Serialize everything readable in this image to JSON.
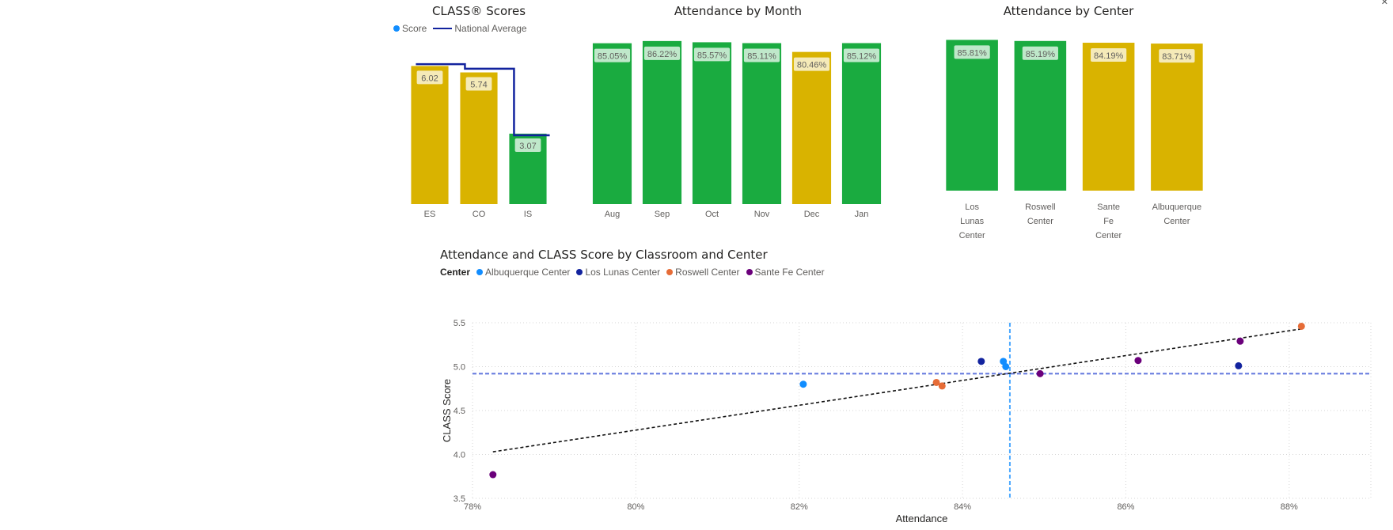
{
  "charts": {
    "class_scores": {
      "title": "CLASS® Scores",
      "legend": {
        "score": "Score",
        "national": "National Average"
      },
      "legend_colors": {
        "score": "#118dff",
        "national": "#12239e"
      }
    },
    "attendance_month": {
      "title": "Attendance by Month"
    },
    "attendance_center": {
      "title": "Attendance by Center"
    },
    "scatter": {
      "title": "Attendance and CLASS Score by Classroom and Center",
      "legend_title": "Center"
    }
  },
  "colors": {
    "gold": "#d9b300",
    "green": "#1aab40"
  },
  "chart_data": [
    {
      "type": "bar",
      "title": "CLASS® Scores",
      "categories": [
        "ES",
        "CO",
        "IS"
      ],
      "series": [
        {
          "name": "Score",
          "values": [
            6.02,
            5.74,
            3.07
          ],
          "labels": [
            "6.02",
            "5.74",
            "3.07"
          ],
          "colors": [
            "#d9b300",
            "#d9b300",
            "#1aab40"
          ]
        },
        {
          "name": "National Average",
          "values": [
            6.1,
            5.9,
            3.0
          ]
        }
      ],
      "ylim": [
        0,
        7
      ]
    },
    {
      "type": "bar",
      "title": "Attendance by Month",
      "categories": [
        "Aug",
        "Sep",
        "Oct",
        "Nov",
        "Dec",
        "Jan"
      ],
      "values": [
        85.05,
        86.22,
        85.57,
        85.11,
        80.46,
        85.12
      ],
      "labels": [
        "85.05%",
        "86.22%",
        "85.57%",
        "85.11%",
        "80.46%",
        "85.12%"
      ],
      "colors": [
        "#1aab40",
        "#1aab40",
        "#1aab40",
        "#1aab40",
        "#d9b300",
        "#1aab40"
      ],
      "ylim": [
        0,
        87
      ]
    },
    {
      "type": "bar",
      "title": "Attendance by Center",
      "categories": [
        "Los Lunas Center",
        "Roswell Center",
        "Sante Fe Center",
        "Albuquerque Center"
      ],
      "values": [
        85.81,
        85.19,
        84.19,
        83.71
      ],
      "labels": [
        "85.81%",
        "85.19%",
        "84.19%",
        "83.71%"
      ],
      "colors": [
        "#1aab40",
        "#1aab40",
        "#d9b300",
        "#d9b300"
      ],
      "ylim": [
        0,
        86
      ]
    },
    {
      "type": "scatter",
      "title": "Attendance and CLASS Score by Classroom and Center",
      "xlabel": "Attendance",
      "ylabel": "CLASS Score",
      "xlim": [
        78,
        89
      ],
      "ylim": [
        3.5,
        5.5
      ],
      "xticks": [
        78,
        80,
        82,
        84,
        86,
        88
      ],
      "xtick_labels": [
        "78%",
        "80%",
        "82%",
        "84%",
        "86%",
        "88%"
      ],
      "yticks": [
        3.5,
        4.0,
        4.5,
        5.0,
        5.5
      ],
      "ytick_labels": [
        "3.5",
        "4.0",
        "4.5",
        "5.0",
        "5.5"
      ],
      "series": [
        {
          "name": "Albuquerque Center",
          "color": "#118dff",
          "points": [
            [
              82.05,
              4.8
            ],
            [
              84.5,
              5.06
            ],
            [
              84.53,
              5.0
            ]
          ]
        },
        {
          "name": "Los Lunas Center",
          "color": "#12239e",
          "points": [
            [
              84.23,
              5.06
            ],
            [
              87.38,
              5.01
            ]
          ]
        },
        {
          "name": "Roswell Center",
          "color": "#e66c37",
          "points": [
            [
              83.68,
              4.82
            ],
            [
              83.75,
              4.78
            ],
            [
              88.15,
              5.46
            ]
          ]
        },
        {
          "name": "Sante Fe Center",
          "color": "#6b007b",
          "points": [
            [
              78.25,
              3.77
            ],
            [
              84.95,
              4.92
            ],
            [
              86.15,
              5.07
            ],
            [
              87.4,
              5.29
            ]
          ]
        }
      ],
      "trend_line": [
        [
          78.25,
          4.03
        ],
        [
          88.15,
          5.43
        ]
      ],
      "avg_x": 84.58,
      "avg_y": 4.92
    }
  ]
}
